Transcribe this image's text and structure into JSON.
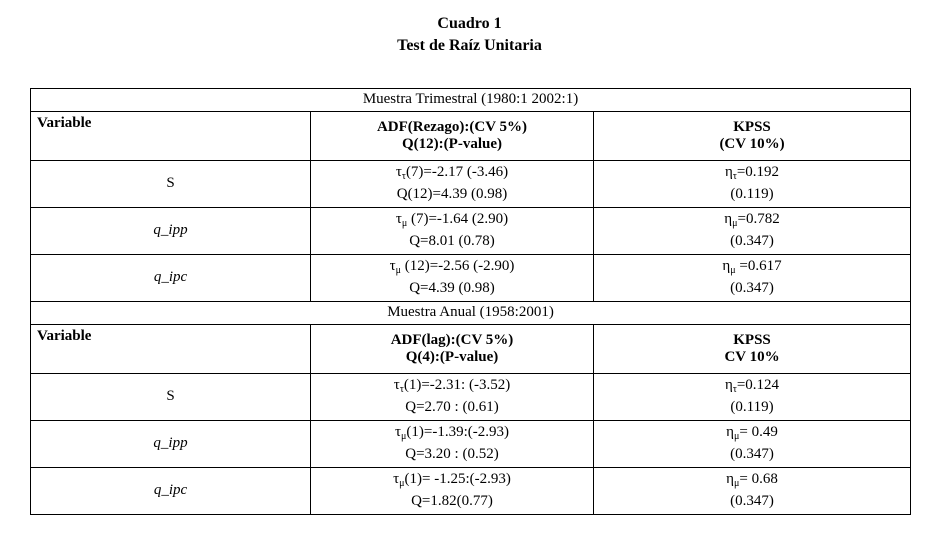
{
  "colors": {
    "background": "#ffffff",
    "text": "#000000",
    "border": "#000000"
  },
  "caption": {
    "line1": "Cuadro 1",
    "line2": "Test de Raíz Unitaria"
  },
  "table": {
    "sections": [
      {
        "title": "Muestra Trimestral (1980:1 2002:1)",
        "col_headers": {
          "variable": "Variable",
          "adf": [
            "ADF(Rezago):(CV 5%)",
            "Q(12):(P-value)"
          ],
          "kpss": [
            "KPSS",
            "(CV 10%)"
          ]
        },
        "rows": [
          {
            "variable": "S",
            "adf": {
              "base": "τ",
              "sub": "τ",
              "rest": "(7)=-2.17 (-3.46)",
              "q": "Q(12)=4.39 (0.98)"
            },
            "kpss": {
              "base": "η",
              "sub": "τ",
              "rest": "=0.192",
              "cv": "(0.119)"
            }
          },
          {
            "variable": "q_ipp",
            "adf": {
              "base": "τ",
              "sub": "μ",
              "rest": " (7)=-1.64 (2.90)",
              "q": "Q=8.01 (0.78)"
            },
            "kpss": {
              "base": "η",
              "sub": "μ",
              "rest": "=0.782",
              "cv": "(0.347)"
            }
          },
          {
            "variable": "q_ipc",
            "adf": {
              "base": "τ",
              "sub": "μ",
              "rest": " (12)=-2.56 (-2.90)",
              "q": "Q=4.39 (0.98)"
            },
            "kpss": {
              "base": "η",
              "sub": "μ",
              "rest": " =0.617",
              "cv": "(0.347)"
            }
          }
        ]
      },
      {
        "title": "Muestra Anual (1958:2001)",
        "col_headers": {
          "variable": "Variable",
          "adf": [
            "ADF(lag):(CV 5%)",
            "Q(4):(P-value)"
          ],
          "kpss": [
            "KPSS",
            "CV 10%"
          ]
        },
        "rows": [
          {
            "variable": "S",
            "adf": {
              "base": "τ",
              "sub": "τ",
              "rest": "(1)=-2.31: (-3.52)",
              "q": "Q=2.70 : (0.61)"
            },
            "kpss": {
              "base": "η",
              "sub": "τ",
              "rest": "=0.124",
              "cv": "(0.119)"
            }
          },
          {
            "variable": "q_ipp",
            "adf": {
              "base": "τ",
              "sub": "μ",
              "rest": "(1)=-1.39:(-2.93)",
              "q": "Q=3.20 : (0.52)"
            },
            "kpss": {
              "base": "η",
              "sub": "μ",
              "rest": "= 0.49",
              "cv": "(0.347)"
            }
          },
          {
            "variable": "q_ipc",
            "adf": {
              "base": "τ",
              "sub": "μ",
              "rest": "(1)= -1.25:(-2.93)",
              "q": "Q=1.82(0.77)"
            },
            "kpss": {
              "base": "η",
              "sub": "μ",
              "rest": "= 0.68",
              "cv": "(0.347)"
            }
          }
        ]
      }
    ]
  }
}
